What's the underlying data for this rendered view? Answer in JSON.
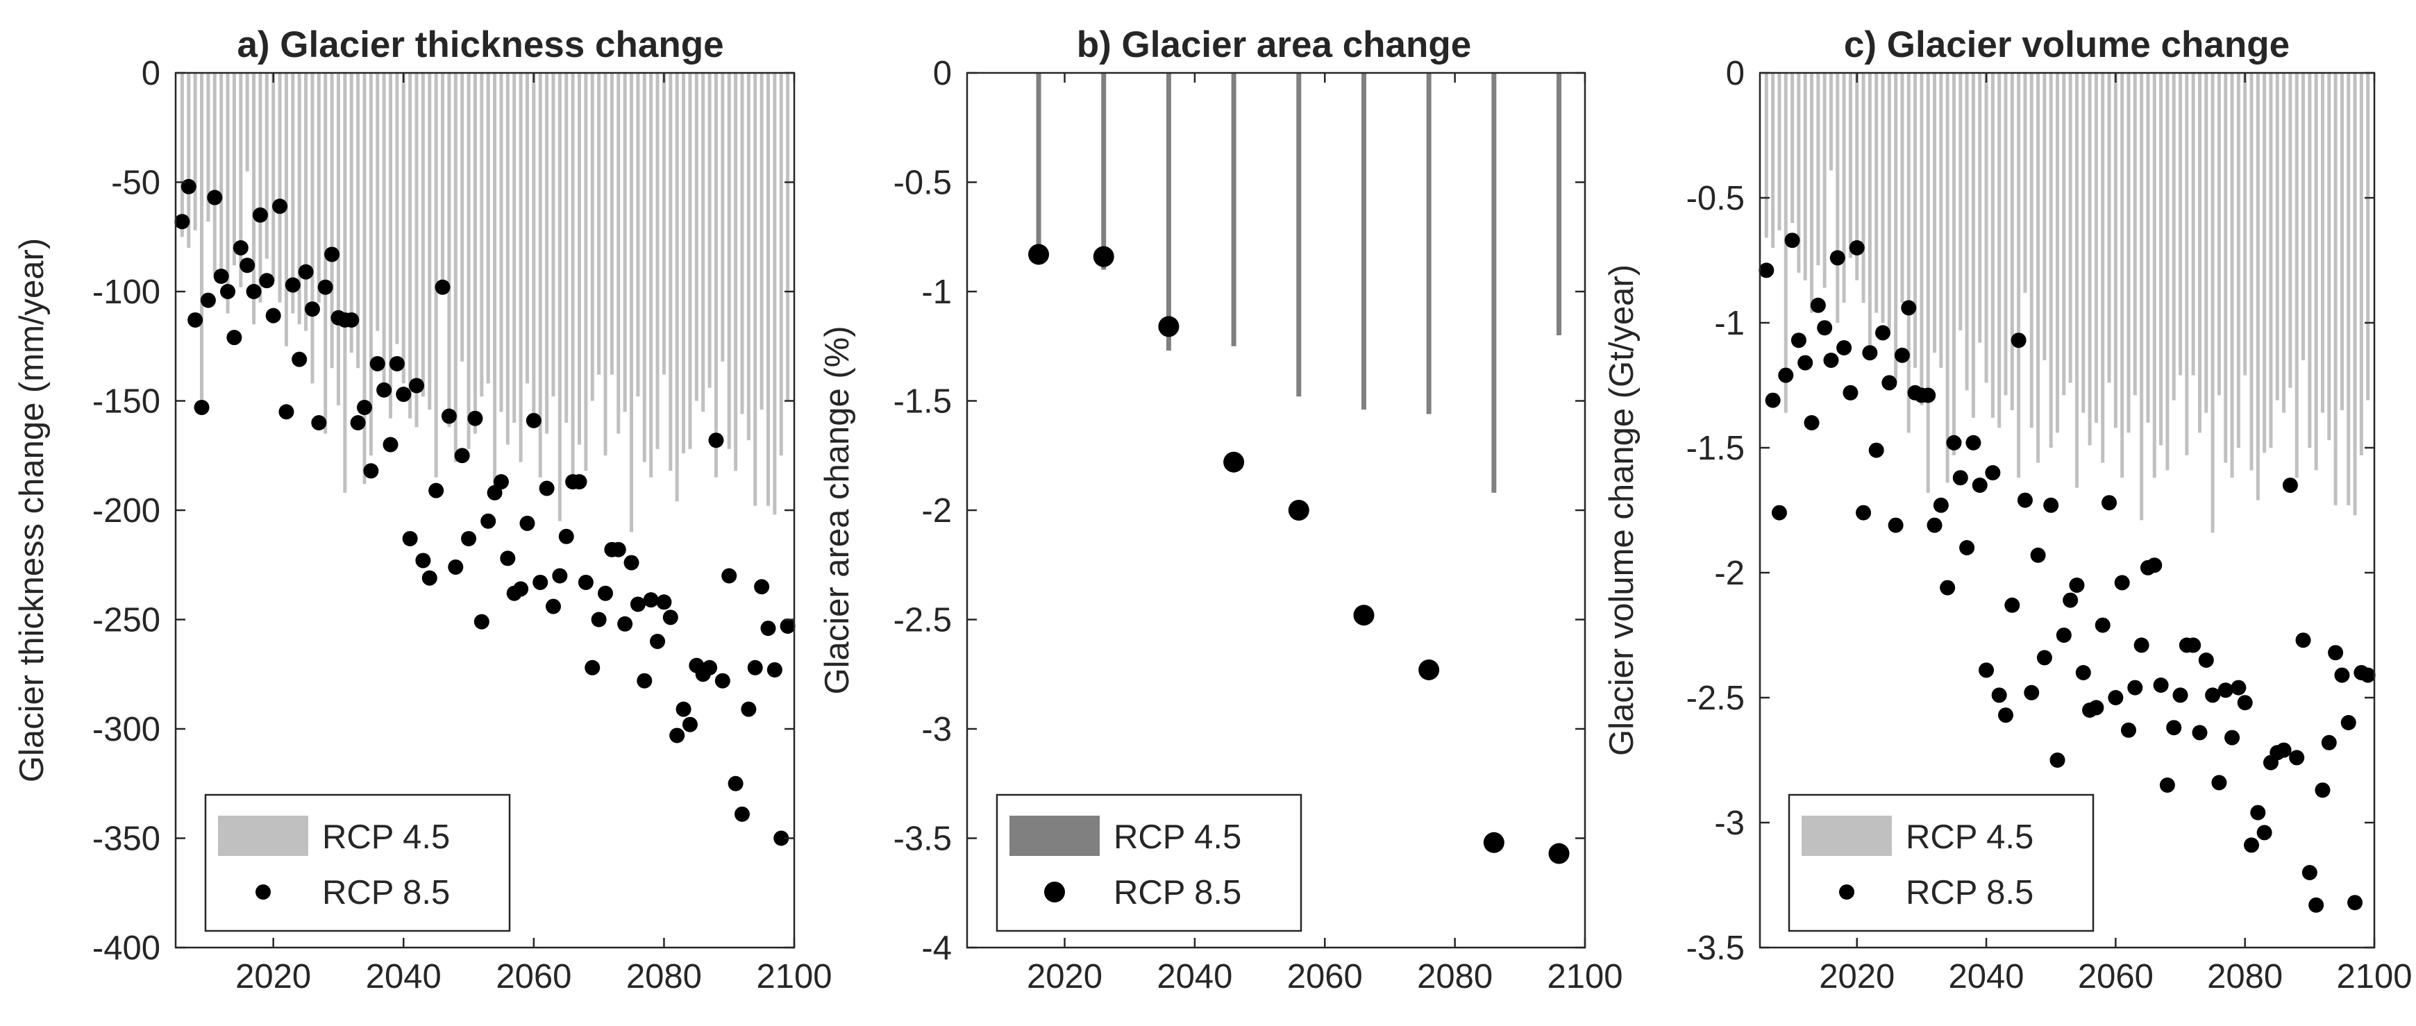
{
  "figure": {
    "colors": {
      "rcp45_light": "#c0c0c0",
      "rcp45_dark": "#808080",
      "rcp85": "#000000",
      "axis": "#262626",
      "background": "#ffffff"
    }
  },
  "chart_data": [
    {
      "type": "bar",
      "title": "a) Glacier thickness change",
      "xlabel": "",
      "ylabel": "Glacier thickness change (mm/year)",
      "xlim": [
        2005,
        2100
      ],
      "ylim": [
        -400,
        0
      ],
      "xticks": [
        2020,
        2040,
        2060,
        2080,
        2100
      ],
      "xtick_labels": [
        "2020",
        "2040",
        "2060",
        "2080",
        "2100"
      ],
      "yticks": [
        0,
        -50,
        -100,
        -150,
        -200,
        -250,
        -300,
        -350,
        -400
      ],
      "ytick_labels": [
        "0",
        "-50",
        "-100",
        "-150",
        "-200",
        "-250",
        "-300",
        "-350",
        "-400"
      ],
      "legend": [
        "RCP 4.5",
        "RCP 8.5"
      ],
      "legend_position": "bottom-left",
      "series": [
        {
          "name": "RCP 4.5",
          "kind": "bar",
          "color": "#c0c0c0",
          "x": [
            2006,
            2007,
            2008,
            2009,
            2010,
            2011,
            2012,
            2013,
            2014,
            2015,
            2016,
            2017,
            2018,
            2019,
            2020,
            2021,
            2022,
            2023,
            2024,
            2025,
            2026,
            2027,
            2028,
            2029,
            2030,
            2031,
            2032,
            2033,
            2034,
            2035,
            2036,
            2037,
            2038,
            2039,
            2040,
            2041,
            2042,
            2043,
            2044,
            2045,
            2046,
            2047,
            2048,
            2049,
            2050,
            2051,
            2052,
            2053,
            2054,
            2055,
            2056,
            2057,
            2058,
            2059,
            2060,
            2061,
            2062,
            2063,
            2064,
            2065,
            2066,
            2067,
            2068,
            2069,
            2070,
            2071,
            2072,
            2073,
            2074,
            2075,
            2076,
            2077,
            2078,
            2079,
            2080,
            2081,
            2082,
            2083,
            2084,
            2085,
            2086,
            2087,
            2088,
            2089,
            2090,
            2091,
            2092,
            2093,
            2094,
            2095,
            2096,
            2097,
            2098,
            2099
          ],
          "values": [
            -75,
            -80,
            -72,
            -155,
            -68,
            -92,
            -95,
            -110,
            -88,
            -98,
            -45,
            -115,
            -105,
            -85,
            -95,
            -105,
            -125,
            -110,
            -115,
            -118,
            -142,
            -105,
            -165,
            -135,
            -152,
            -192,
            -128,
            -135,
            -188,
            -175,
            -118,
            -145,
            -158,
            -124,
            -142,
            -158,
            -162,
            -148,
            -154,
            -185,
            -100,
            -162,
            -178,
            -132,
            -172,
            -165,
            -148,
            -142,
            -190,
            -155,
            -170,
            -160,
            -178,
            -142,
            -162,
            -185,
            -165,
            -148,
            -205,
            -160,
            -185,
            -170,
            -182,
            -150,
            -138,
            -175,
            -138,
            -165,
            -155,
            -210,
            -148,
            -178,
            -185,
            -172,
            -138,
            -182,
            -196,
            -174,
            -172,
            -150,
            -155,
            -144,
            -185,
            -132,
            -172,
            -182,
            -156,
            -168,
            -198,
            -154,
            -198,
            -202,
            -175,
            -150
          ]
        },
        {
          "name": "RCP 8.5",
          "kind": "scatter",
          "color": "#000000",
          "x": [
            2006,
            2007,
            2008,
            2009,
            2010,
            2011,
            2012,
            2013,
            2014,
            2015,
            2016,
            2017,
            2018,
            2019,
            2020,
            2021,
            2022,
            2023,
            2024,
            2025,
            2026,
            2027,
            2028,
            2029,
            2030,
            2031,
            2032,
            2033,
            2034,
            2035,
            2036,
            2037,
            2038,
            2039,
            2040,
            2041,
            2042,
            2043,
            2044,
            2045,
            2046,
            2047,
            2048,
            2049,
            2050,
            2051,
            2052,
            2053,
            2054,
            2055,
            2056,
            2057,
            2058,
            2059,
            2060,
            2061,
            2062,
            2063,
            2064,
            2065,
            2066,
            2067,
            2068,
            2069,
            2070,
            2071,
            2072,
            2073,
            2074,
            2075,
            2076,
            2077,
            2078,
            2079,
            2080,
            2081,
            2082,
            2083,
            2084,
            2085,
            2086,
            2087,
            2088,
            2089,
            2090,
            2091,
            2092,
            2093,
            2094,
            2095,
            2096,
            2097,
            2098,
            2099
          ],
          "values": [
            -68,
            -52,
            -113,
            -153,
            -104,
            -57,
            -93,
            -100,
            -121,
            -80,
            -88,
            -100,
            -65,
            -95,
            -111,
            -61,
            -155,
            -97,
            -131,
            -91,
            -108,
            -160,
            -98,
            -83,
            -112,
            -113,
            -113,
            -160,
            -153,
            -182,
            -133,
            -145,
            -170,
            -133,
            -147,
            -213,
            -143,
            -223,
            -231,
            -191,
            -98,
            -157,
            -226,
            -175,
            -213,
            -158,
            -251,
            -205,
            -192,
            -187,
            -222,
            -238,
            -236,
            -206,
            -159,
            -233,
            -190,
            -244,
            -230,
            -212,
            -187,
            -187,
            -233,
            -272,
            -250,
            -238,
            -218,
            -218,
            -252,
            -224,
            -243,
            -278,
            -241,
            -260,
            -242,
            -249,
            -303,
            -291,
            -298,
            -271,
            -275,
            -272,
            -168,
            -278,
            -230,
            -325,
            -339,
            -291,
            -272,
            -235,
            -254,
            -273,
            -350,
            -253
          ]
        }
      ]
    },
    {
      "type": "bar",
      "title": "b) Glacier area change",
      "xlabel": "",
      "ylabel": "Glacier area change (%)",
      "xlim": [
        2005,
        2100
      ],
      "ylim": [
        -4,
        0
      ],
      "xticks": [
        2020,
        2040,
        2060,
        2080,
        2100
      ],
      "xtick_labels": [
        "2020",
        "2040",
        "2060",
        "2080",
        "2100"
      ],
      "yticks": [
        0,
        -0.5,
        -1,
        -1.5,
        -2,
        -2.5,
        -3,
        -3.5,
        -4
      ],
      "ytick_labels": [
        "0",
        "-0.5",
        "-1",
        "-1.5",
        "-2",
        "-2.5",
        "-3",
        "-3.5",
        "-4"
      ],
      "legend": [
        "RCP 4.5",
        "RCP 8.5"
      ],
      "legend_position": "bottom-left",
      "series": [
        {
          "name": "RCP 4.5",
          "kind": "bar",
          "color": "#808080",
          "x": [
            2016,
            2026,
            2036,
            2046,
            2056,
            2066,
            2076,
            2086,
            2096
          ],
          "values": [
            -0.85,
            -0.9,
            -1.27,
            -1.25,
            -1.48,
            -1.54,
            -1.56,
            -1.92,
            -1.2
          ]
        },
        {
          "name": "RCP 8.5",
          "kind": "scatter",
          "color": "#000000",
          "x": [
            2016,
            2026,
            2036,
            2046,
            2056,
            2066,
            2076,
            2086,
            2096
          ],
          "values": [
            -0.83,
            -0.84,
            -1.16,
            -1.78,
            -2.0,
            -2.48,
            -2.73,
            -3.52,
            -3.57
          ]
        }
      ]
    },
    {
      "type": "bar",
      "title": "c) Glacier volume change",
      "xlabel": "",
      "ylabel": "Glacier volume change (Gt/year)",
      "xlim": [
        2005,
        2100
      ],
      "ylim": [
        -3.5,
        0
      ],
      "xticks": [
        2020,
        2040,
        2060,
        2080,
        2100
      ],
      "xtick_labels": [
        "2020",
        "2040",
        "2060",
        "2080",
        "2100"
      ],
      "yticks": [
        0,
        -0.5,
        -1,
        -1.5,
        -2,
        -2.5,
        -3,
        -3.5
      ],
      "ytick_labels": [
        "0",
        "-0.5",
        "-1",
        "-1.5",
        "-2",
        "-2.5",
        "-3",
        "-3.5"
      ],
      "legend": [
        "RCP 4.5",
        "RCP 8.5"
      ],
      "legend_position": "bottom-left",
      "series": [
        {
          "name": "RCP 4.5",
          "kind": "bar",
          "color": "#c0c0c0",
          "x": [
            2006,
            2007,
            2008,
            2009,
            2010,
            2011,
            2012,
            2013,
            2014,
            2015,
            2016,
            2017,
            2018,
            2019,
            2020,
            2021,
            2022,
            2023,
            2024,
            2025,
            2026,
            2027,
            2028,
            2029,
            2030,
            2031,
            2032,
            2033,
            2034,
            2035,
            2036,
            2037,
            2038,
            2039,
            2040,
            2041,
            2042,
            2043,
            2044,
            2045,
            2046,
            2047,
            2048,
            2049,
            2050,
            2051,
            2052,
            2053,
            2054,
            2055,
            2056,
            2057,
            2058,
            2059,
            2060,
            2061,
            2062,
            2063,
            2064,
            2065,
            2066,
            2067,
            2068,
            2069,
            2070,
            2071,
            2072,
            2073,
            2074,
            2075,
            2076,
            2077,
            2078,
            2079,
            2080,
            2081,
            2082,
            2083,
            2084,
            2085,
            2086,
            2087,
            2088,
            2089,
            2090,
            2091,
            2092,
            2093,
            2094,
            2095,
            2096,
            2097,
            2098,
            2099
          ],
          "values": [
            -0.66,
            -0.7,
            -0.63,
            -1.36,
            -0.6,
            -0.8,
            -0.83,
            -0.96,
            -0.77,
            -0.86,
            -0.39,
            -1.0,
            -0.92,
            -0.74,
            -0.83,
            -0.92,
            -1.09,
            -0.96,
            -1.0,
            -1.03,
            -1.24,
            -0.92,
            -1.44,
            -1.18,
            -1.33,
            -1.68,
            -1.12,
            -1.18,
            -1.64,
            -1.53,
            -1.03,
            -1.27,
            -1.38,
            -1.08,
            -1.24,
            -1.38,
            -1.42,
            -1.29,
            -1.35,
            -1.62,
            -0.88,
            -1.42,
            -1.56,
            -1.15,
            -1.5,
            -1.44,
            -1.29,
            -1.24,
            -1.66,
            -1.36,
            -1.49,
            -1.4,
            -1.56,
            -1.24,
            -1.42,
            -1.62,
            -1.44,
            -1.29,
            -1.79,
            -1.4,
            -1.62,
            -1.49,
            -1.59,
            -1.31,
            -1.21,
            -1.53,
            -1.21,
            -1.44,
            -1.36,
            -1.84,
            -1.29,
            -1.56,
            -1.62,
            -1.5,
            -1.21,
            -1.59,
            -1.71,
            -1.52,
            -1.5,
            -1.31,
            -1.36,
            -1.26,
            -1.62,
            -1.15,
            -1.5,
            -1.59,
            -1.36,
            -1.47,
            -1.73,
            -1.35,
            -1.73,
            -1.77,
            -1.53,
            -1.31
          ]
        },
        {
          "name": "RCP 8.5",
          "kind": "scatter",
          "color": "#000000",
          "x": [
            2006,
            2007,
            2008,
            2009,
            2010,
            2011,
            2012,
            2013,
            2014,
            2015,
            2016,
            2017,
            2018,
            2019,
            2020,
            2021,
            2022,
            2023,
            2024,
            2025,
            2026,
            2027,
            2028,
            2029,
            2030,
            2031,
            2032,
            2033,
            2034,
            2035,
            2036,
            2037,
            2038,
            2039,
            2040,
            2041,
            2042,
            2043,
            2044,
            2045,
            2046,
            2047,
            2048,
            2049,
            2050,
            2051,
            2052,
            2053,
            2054,
            2055,
            2056,
            2057,
            2058,
            2059,
            2060,
            2061,
            2062,
            2063,
            2064,
            2065,
            2066,
            2067,
            2068,
            2069,
            2070,
            2071,
            2072,
            2073,
            2074,
            2075,
            2076,
            2077,
            2078,
            2079,
            2080,
            2081,
            2082,
            2083,
            2084,
            2085,
            2086,
            2087,
            2088,
            2089,
            2090,
            2091,
            2092,
            2093,
            2094,
            2095,
            2096,
            2097,
            2098,
            2099
          ],
          "values": [
            -0.79,
            -1.31,
            -1.76,
            -1.21,
            -0.67,
            -1.07,
            -1.16,
            -1.4,
            -0.93,
            -1.02,
            -1.15,
            -0.74,
            -1.1,
            -1.28,
            -0.7,
            -1.76,
            -1.12,
            -1.51,
            -1.04,
            -1.24,
            -1.81,
            -1.13,
            -0.94,
            -1.28,
            -1.29,
            -1.29,
            -1.81,
            -1.73,
            -2.06,
            -1.48,
            -1.62,
            -1.9,
            -1.48,
            -1.65,
            -2.39,
            -1.6,
            -2.49,
            -2.57,
            -2.13,
            -1.07,
            -1.71,
            -2.48,
            -1.93,
            -2.34,
            -1.73,
            -2.75,
            -2.25,
            -2.11,
            -2.05,
            -2.4,
            -2.55,
            -2.54,
            -2.21,
            -1.72,
            -2.5,
            -2.04,
            -2.63,
            -2.46,
            -2.29,
            -1.98,
            -1.97,
            -2.45,
            -2.85,
            -2.62,
            -2.49,
            -2.29,
            -2.29,
            -2.64,
            -2.35,
            -2.49,
            -2.84,
            -2.47,
            -2.66,
            -2.46,
            -2.52,
            -3.09,
            -2.96,
            -3.04,
            -2.76,
            -2.72,
            -2.71,
            -1.65,
            -2.74,
            -2.27,
            -3.2,
            -3.33,
            -2.87,
            -2.68,
            -2.32,
            -2.41,
            -2.6,
            -3.32,
            -2.4,
            -2.41
          ]
        }
      ]
    }
  ]
}
